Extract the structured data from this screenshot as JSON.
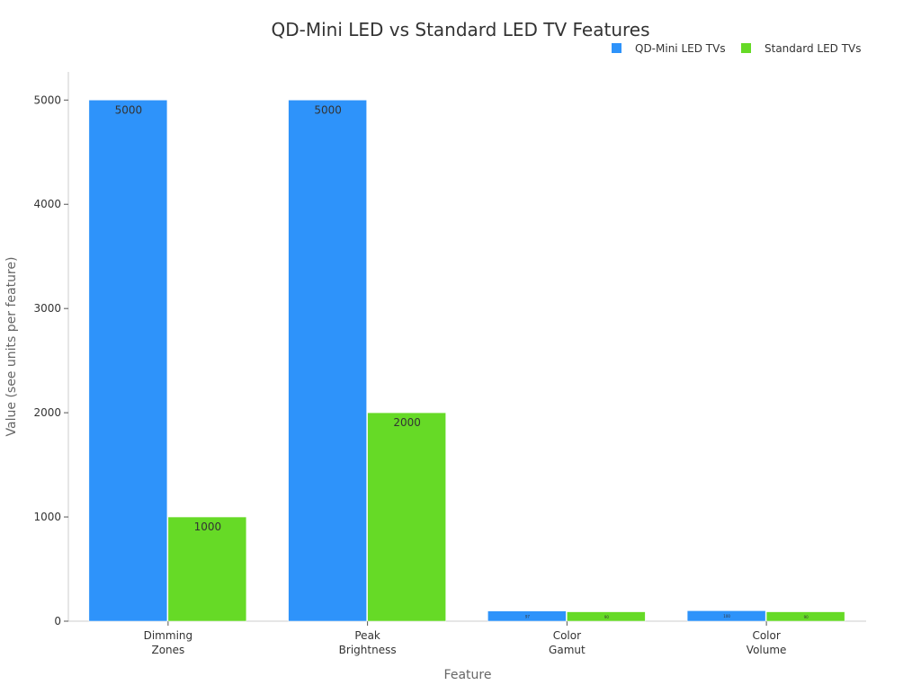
{
  "chart_data": {
    "type": "bar",
    "title": "QD-Mini LED vs Standard LED TV Features",
    "xlabel": "Feature",
    "ylabel": "Value (see units per feature)",
    "categories": [
      "Dimming\nZones",
      "Peak\nBrightness",
      "Color\nGamut",
      "Color\nVolume"
    ],
    "series": [
      {
        "name": "QD-Mini LED TVs",
        "color": "#2e93fa",
        "values": [
          5000,
          5000,
          97,
          100
        ]
      },
      {
        "name": "Standard LED TVs",
        "color": "#66da26",
        "values": [
          1000,
          2000,
          90,
          90
        ]
      }
    ],
    "yticks": [
      0,
      1000,
      2000,
      3000,
      4000,
      5000
    ],
    "ylim": [
      0,
      5270
    ],
    "grid": false,
    "legend": "top-right"
  }
}
